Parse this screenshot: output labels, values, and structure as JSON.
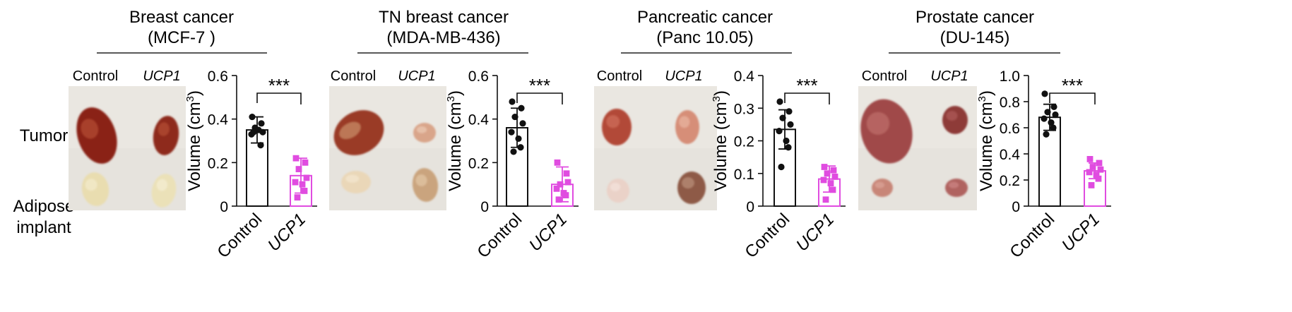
{
  "row_labels": {
    "tumor": "Tumor",
    "adipose_line1": "Adipose",
    "adipose_line2": "implant"
  },
  "colors": {
    "control": "#111111",
    "ucp1": "#e04ce0",
    "background": "#ffffff"
  },
  "chart_data": [
    {
      "type": "bar",
      "title_line1": "Breast cancer",
      "title_line2": "(MCF-7 )",
      "photo_labels": [
        "Control",
        "UCP1"
      ],
      "categories": [
        "Control",
        "UCP1"
      ],
      "values": [
        0.35,
        0.14
      ],
      "errors": [
        0.06,
        0.08
      ],
      "points": [
        [
          0.41,
          0.38,
          0.36,
          0.34,
          0.33,
          0.35,
          0.28,
          0.34
        ],
        [
          0.22,
          0.2,
          0.17,
          0.13,
          0.11,
          0.1,
          0.07,
          0.04
        ]
      ],
      "ylabel": "Volume (cm3)",
      "ylim": [
        0,
        0.6
      ],
      "yticks": [
        0,
        0.2,
        0.4,
        0.6
      ],
      "tick_labels": [
        "0",
        "0.2",
        "0.4",
        "0.6"
      ],
      "significance": "***"
    },
    {
      "type": "bar",
      "title_line1": "TN breast cancer",
      "title_line2": "(MDA-MB-436)",
      "photo_labels": [
        "Control",
        "UCP1"
      ],
      "categories": [
        "Control",
        "UCP1"
      ],
      "values": [
        0.36,
        0.1
      ],
      "errors": [
        0.09,
        0.08
      ],
      "points": [
        [
          0.48,
          0.45,
          0.41,
          0.38,
          0.34,
          0.31,
          0.27,
          0.25
        ],
        [
          0.2,
          0.15,
          0.1,
          0.11,
          0.08,
          0.06,
          0.05,
          0.03
        ]
      ],
      "ylabel": "Volume (cm3)",
      "ylim": [
        0,
        0.6
      ],
      "yticks": [
        0,
        0.2,
        0.4,
        0.6
      ],
      "tick_labels": [
        "0",
        "0.2",
        "0.4",
        "0.6"
      ],
      "significance": "***"
    },
    {
      "type": "bar",
      "title_line1": "Pancreatic cancer",
      "title_line2": "(Panc 10.05)",
      "photo_labels": [
        "Control",
        "UCP1"
      ],
      "categories": [
        "Control",
        "UCP1"
      ],
      "values": [
        0.235,
        0.083
      ],
      "errors": [
        0.06,
        0.04
      ],
      "points": [
        [
          0.32,
          0.29,
          0.27,
          0.25,
          0.23,
          0.2,
          0.18,
          0.12
        ],
        [
          0.12,
          0.11,
          0.1,
          0.09,
          0.08,
          0.07,
          0.05,
          0.02
        ]
      ],
      "ylabel": "Volume (cm3)",
      "ylim": [
        0,
        0.4
      ],
      "yticks": [
        0,
        0.1,
        0.2,
        0.3,
        0.4
      ],
      "tick_labels": [
        "0",
        "0.1",
        "0.2",
        "0.3",
        "0.4"
      ],
      "significance": "***"
    },
    {
      "type": "bar",
      "title_line1": "Prostate cancer",
      "title_line2": "(DU-145)",
      "photo_labels": [
        "Control",
        "UCP1"
      ],
      "categories": [
        "Control",
        "UCP1"
      ],
      "values": [
        0.68,
        0.27
      ],
      "errors": [
        0.1,
        0.06
      ],
      "points": [
        [
          0.86,
          0.76,
          0.72,
          0.7,
          0.67,
          0.64,
          0.6,
          0.55
        ],
        [
          0.36,
          0.33,
          0.3,
          0.28,
          0.26,
          0.24,
          0.21,
          0.16
        ]
      ],
      "ylabel": "Volume (cm3)",
      "ylim": [
        0,
        1.0
      ],
      "yticks": [
        0,
        0.2,
        0.4,
        0.6,
        0.8,
        1.0
      ],
      "tick_labels": [
        "0",
        "0.2",
        "0.4",
        "0.6",
        "0.8",
        "1.0"
      ],
      "significance": "***"
    }
  ]
}
